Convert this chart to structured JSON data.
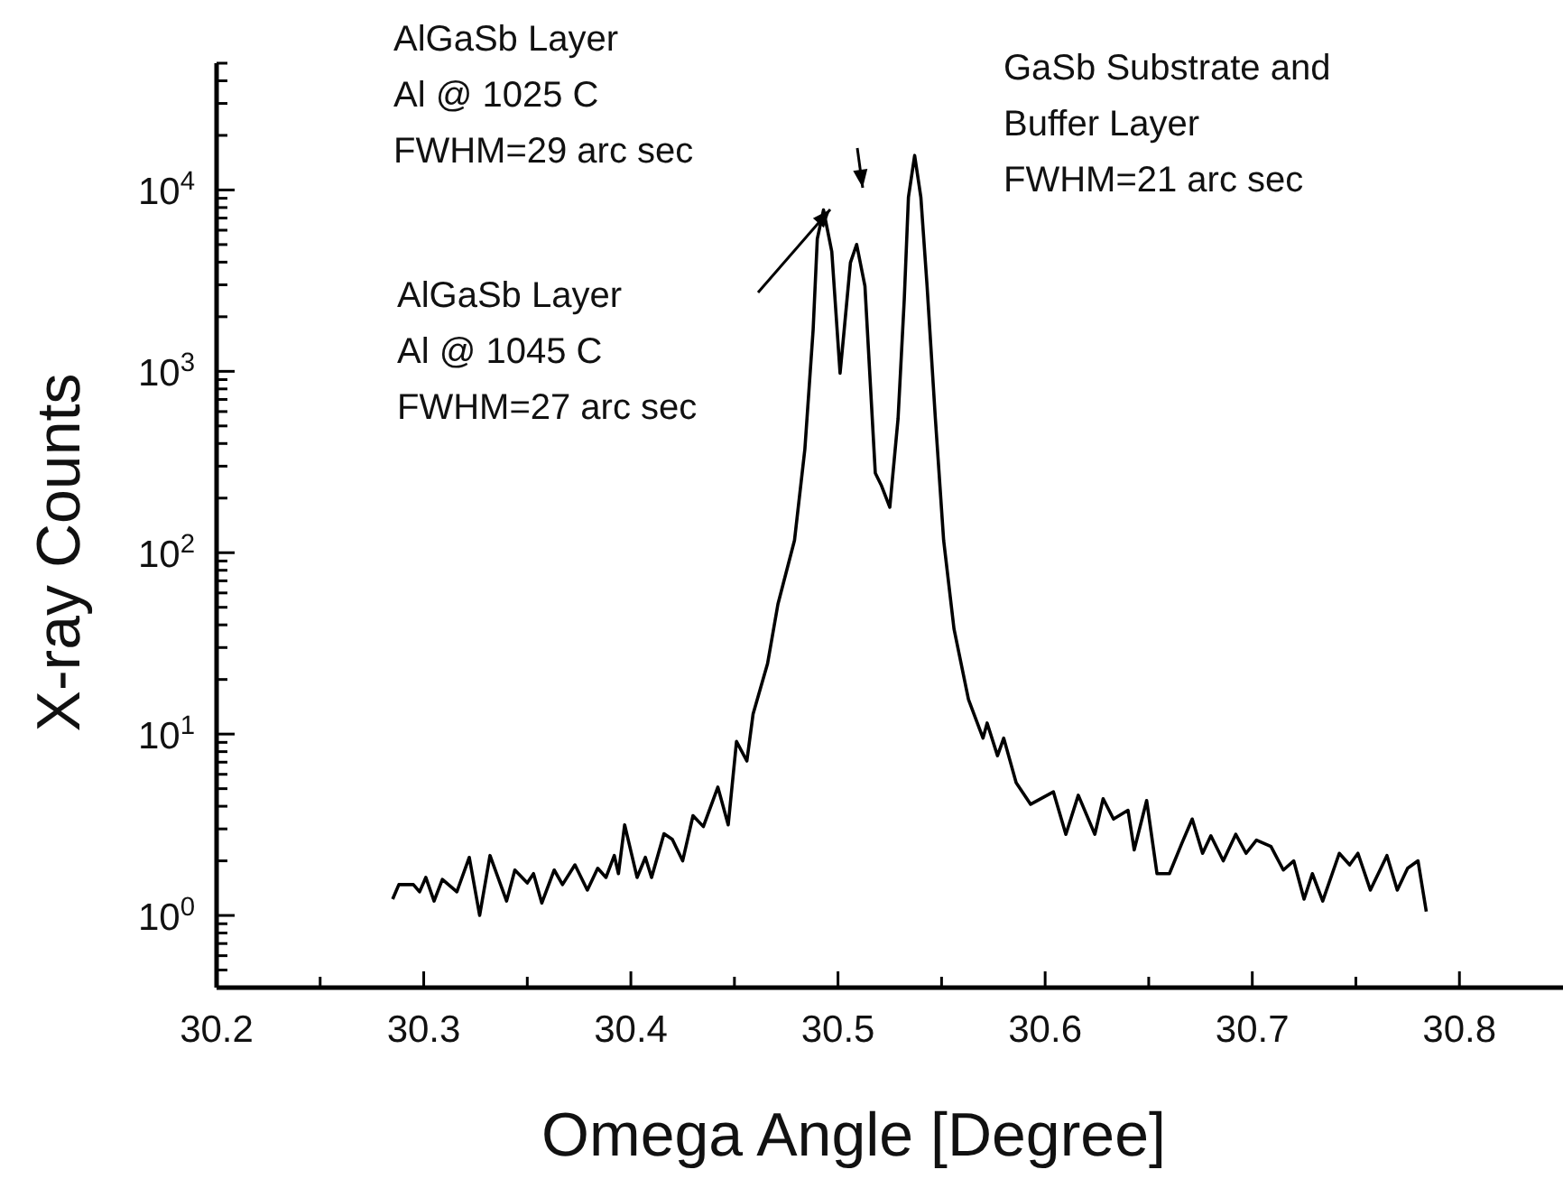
{
  "chart_data": {
    "type": "line",
    "xlabel": "Omega Angle [Degree]",
    "ylabel": "X-ray Counts",
    "log": "y",
    "grid": false,
    "marker": "none",
    "line_style": "solid",
    "xlim": [
      30.2,
      30.85
    ],
    "ylim": [
      0.4,
      50000
    ],
    "xticks": [
      30.2,
      {
        "value": 30.25,
        "label": null
      },
      30.3,
      {
        "value": 30.35,
        "label": null
      },
      30.4,
      {
        "value": 30.45,
        "label": null
      },
      30.5,
      {
        "value": 30.55,
        "label": null
      },
      30.6,
      {
        "value": 30.65,
        "label": null
      },
      30.7,
      {
        "value": 30.75,
        "label": null
      },
      30.8
    ],
    "yticks": [
      {
        "value": 0.4,
        "label": null
      },
      {
        "value": 0.5,
        "label": null
      },
      {
        "value": 0.6,
        "label": null
      },
      {
        "value": 0.7,
        "label": null
      },
      {
        "value": 0.8,
        "label": null
      },
      {
        "value": 0.9,
        "label": null
      },
      {
        "value": 1,
        "label": "10$^{0}$"
      },
      {
        "value": 2,
        "label": null
      },
      {
        "value": 3,
        "label": null
      },
      {
        "value": 4,
        "label": null
      },
      {
        "value": 5,
        "label": null
      },
      {
        "value": 6,
        "label": null
      },
      {
        "value": 7,
        "label": null
      },
      {
        "value": 8,
        "label": null
      },
      {
        "value": 9,
        "label": null
      },
      {
        "value": 10,
        "label": "10$^{1}$"
      },
      {
        "value": 20,
        "label": null
      },
      {
        "value": 30,
        "label": null
      },
      {
        "value": 40,
        "label": null
      },
      {
        "value": 50,
        "label": null
      },
      {
        "value": 60,
        "label": null
      },
      {
        "value": 70,
        "label": null
      },
      {
        "value": 80,
        "label": null
      },
      {
        "value": 90,
        "label": null
      },
      {
        "value": 100,
        "label": "10$^{2}$"
      },
      {
        "value": 200,
        "label": null
      },
      {
        "value": 300,
        "label": null
      },
      {
        "value": 400,
        "label": null
      },
      {
        "value": 500,
        "label": null
      },
      {
        "value": 600,
        "label": null
      },
      {
        "value": 700,
        "label": null
      },
      {
        "value": 800,
        "label": null
      },
      {
        "value": 900,
        "label": null
      },
      {
        "value": 1000,
        "label": "10$^{3}$"
      },
      {
        "value": 2000,
        "label": null
      },
      {
        "value": 3000,
        "label": null
      },
      {
        "value": 4000,
        "label": null
      },
      {
        "value": 5000,
        "label": null
      },
      {
        "value": 6000,
        "label": null
      },
      {
        "value": 7000,
        "label": null
      },
      {
        "value": 8000,
        "label": null
      },
      {
        "value": 9000,
        "label": null
      },
      {
        "value": 10000,
        "label": "10$^{4}$"
      },
      {
        "value": 20000,
        "label": null
      },
      {
        "value": 30000,
        "label": null
      },
      {
        "value": 40000,
        "label": null
      },
      {
        "value": 50000,
        "label": null
      }
    ],
    "annotations": [
      "AlGaSb Layer\nAl @ 1025 C\nFWHM=29 arc sec",
      "AlGaSb Layer\nAl @ 1045 C\nFWHM=27 arc sec",
      "GaSb Substrate and\nBuffer Layer\nFWHM=21 arc sec"
    ],
    "series": [
      {
        "color": "#000000",
        "x": [
          30.285,
          30.288,
          30.295,
          30.298,
          30.301,
          30.305,
          30.309,
          30.316,
          30.322,
          30.327,
          30.332,
          30.34,
          30.344,
          30.35,
          30.353,
          30.357,
          30.363,
          30.367,
          30.373,
          30.379,
          30.384,
          30.388,
          30.392,
          30.394,
          30.397,
          30.403,
          30.407,
          30.41,
          30.416,
          30.42,
          30.425,
          30.43,
          30.435,
          30.442,
          30.447,
          30.451,
          30.456,
          30.459,
          30.466,
          30.471,
          30.479,
          30.484,
          30.488,
          30.49,
          30.493,
          30.497,
          30.501,
          30.503,
          30.506,
          30.509,
          30.513,
          30.518,
          30.521,
          30.525,
          30.529,
          30.532,
          30.534,
          30.537,
          30.54,
          30.543,
          30.547,
          30.551,
          30.556,
          30.563,
          30.57,
          30.572,
          30.577,
          30.58,
          30.586,
          30.593,
          30.604,
          30.61,
          30.616,
          30.624,
          30.628,
          30.633,
          30.64,
          30.643,
          30.649,
          30.654,
          30.66,
          30.666,
          30.671,
          30.676,
          30.68,
          30.686,
          30.692,
          30.697,
          30.702,
          30.709,
          30.715,
          30.72,
          30.725,
          30.729,
          30.734,
          30.742,
          30.747,
          30.751,
          30.757,
          30.765,
          30.77,
          30.775,
          30.78,
          30.784
        ],
        "values": [
          1.23,
          1.48,
          1.48,
          1.35,
          1.62,
          1.2,
          1.58,
          1.35,
          2.09,
          1.0,
          2.14,
          1.2,
          1.78,
          1.51,
          1.7,
          1.17,
          1.78,
          1.48,
          1.9,
          1.38,
          1.82,
          1.62,
          2.14,
          1.7,
          3.16,
          1.62,
          2.09,
          1.62,
          2.82,
          2.63,
          2.0,
          3.55,
          3.09,
          5.1,
          3.16,
          9.1,
          7.1,
          12.9,
          24.5,
          52,
          117,
          372,
          1700,
          5370,
          7760,
          4570,
          977,
          1700,
          3980,
          5010,
          2950,
          275,
          234,
          178,
          550,
          2510,
          9120,
          15500,
          9120,
          2950,
          550,
          117,
          38,
          15.5,
          9.5,
          11.5,
          7.6,
          9.5,
          5.4,
          4.1,
          4.8,
          2.8,
          4.6,
          2.8,
          4.4,
          3.4,
          3.8,
          2.3,
          4.3,
          1.7,
          1.7,
          2.5,
          3.4,
          2.2,
          2.75,
          2.0,
          2.8,
          2.2,
          2.6,
          2.4,
          1.78,
          2.0,
          1.23,
          1.7,
          1.2,
          2.2,
          1.9,
          2.2,
          1.38,
          2.14,
          1.38,
          1.82,
          2.0,
          1.05
        ]
      }
    ]
  }
}
